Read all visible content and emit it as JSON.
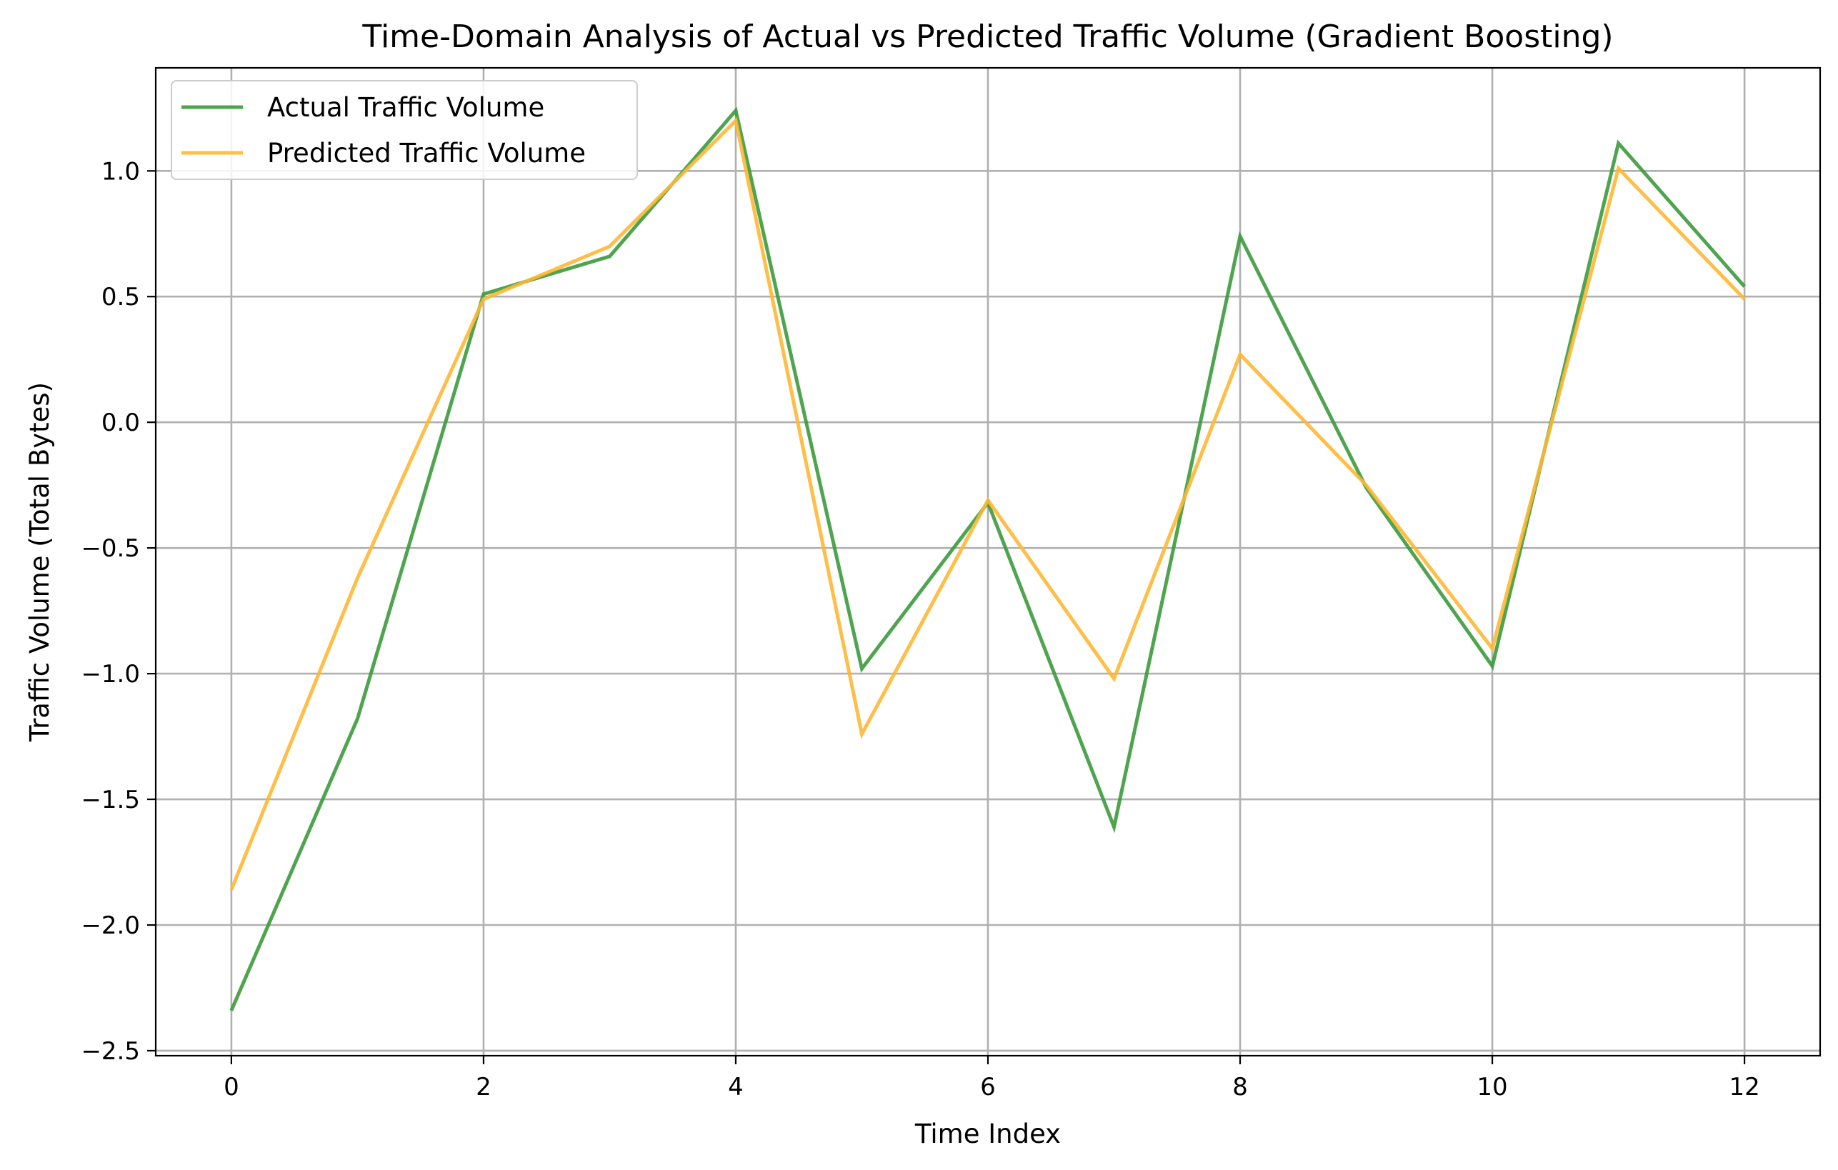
{
  "chart_data": {
    "type": "line",
    "title": "Time-Domain Analysis of Actual vs Predicted Traffic Volume (Gradient Boosting)",
    "xlabel": "Time Index",
    "ylabel": "Traffic Volume (Total Bytes)",
    "x": [
      0,
      1,
      2,
      3,
      4,
      5,
      6,
      7,
      8,
      9,
      10,
      11,
      12
    ],
    "xlim": [
      -0.6,
      12.6
    ],
    "ylim": [
      -2.52,
      1.41
    ],
    "xticks": [
      0,
      2,
      4,
      6,
      8,
      10,
      12
    ],
    "xtick_labels": [
      "0",
      "2",
      "4",
      "6",
      "8",
      "10",
      "12"
    ],
    "yticks": [
      -2.5,
      -2.0,
      -1.5,
      -1.0,
      -0.5,
      0.0,
      0.5,
      1.0
    ],
    "ytick_labels": [
      "−2.5",
      "−2.0",
      "−1.5",
      "−1.0",
      "−0.5",
      "0.0",
      "0.5",
      "1.0"
    ],
    "grid": true,
    "legend_position": "top-left",
    "series": [
      {
        "name": "Actual Traffic Volume",
        "color": "#3c9a3c",
        "values": [
          -2.34,
          -1.18,
          0.51,
          0.66,
          1.24,
          -0.98,
          -0.32,
          -1.61,
          0.74,
          -0.26,
          -0.97,
          1.11,
          0.54
        ]
      },
      {
        "name": "Predicted Traffic Volume",
        "color": "#ffb733",
        "values": [
          -1.86,
          -0.62,
          0.49,
          0.7,
          1.2,
          -1.24,
          -0.31,
          -1.02,
          0.27,
          -0.25,
          -0.9,
          1.01,
          0.49
        ]
      }
    ]
  }
}
